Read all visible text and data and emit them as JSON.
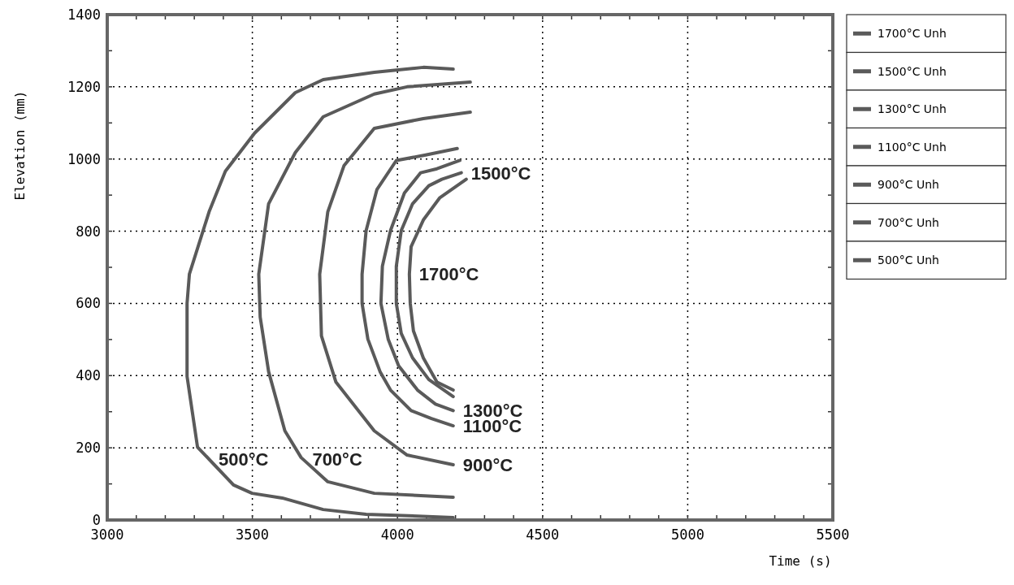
{
  "chart_data": {
    "type": "line",
    "xlabel": "Time (s)",
    "ylabel": "Elevation (mm)",
    "xlim": [
      3000,
      5500
    ],
    "ylim": [
      0,
      1400
    ],
    "xticks": [
      3000,
      {
        "value": 3100,
        "label": null
      },
      {
        "value": 3200,
        "label": null
      },
      {
        "value": 3300,
        "label": null
      },
      {
        "value": 3400,
        "label": null
      },
      3500,
      {
        "value": 3600,
        "label": null
      },
      {
        "value": 3700,
        "label": null
      },
      {
        "value": 3800,
        "label": null
      },
      {
        "value": 3900,
        "label": null
      },
      4000,
      {
        "value": 4100,
        "label": null
      },
      {
        "value": 4200,
        "label": null
      },
      {
        "value": 4300,
        "label": null
      },
      {
        "value": 4400,
        "label": null
      },
      4500,
      {
        "value": 4600,
        "label": null
      },
      {
        "value": 4700,
        "label": null
      },
      {
        "value": 4800,
        "label": null
      },
      {
        "value": 4900,
        "label": null
      },
      5000,
      {
        "value": 5100,
        "label": null
      },
      {
        "value": 5200,
        "label": null
      },
      {
        "value": 5300,
        "label": null
      },
      {
        "value": 5400,
        "label": null
      },
      5500
    ],
    "yticks": [
      0,
      {
        "value": 100,
        "label": null
      },
      200,
      {
        "value": 300,
        "label": null
      },
      400,
      {
        "value": 500,
        "label": null
      },
      600,
      {
        "value": 700,
        "label": null
      },
      800,
      {
        "value": 900,
        "label": null
      },
      1000,
      {
        "value": 1100,
        "label": null
      },
      1200,
      {
        "value": 1300,
        "label": null
      },
      1400
    ],
    "grid": true,
    "legend": "right",
    "line_style": "solid",
    "series": [
      {
        "name": "1700°C Unh",
        "color": "#5a5a5a",
        "x": [
          4237,
          4145,
          4089,
          4047,
          4041,
          4044,
          4055,
          4089,
          4136,
          4192
        ],
        "values": [
          944,
          892,
          831,
          757,
          681,
          600,
          524,
          449,
          382,
          360
        ]
      },
      {
        "name": "1500°C Unh",
        "color": "#5a5a5a",
        "x": [
          4220,
          4153,
          4108,
          4052,
          4013,
          3996,
          3996,
          4013,
          4052,
          4108,
          4192
        ],
        "values": [
          962,
          944,
          926,
          876,
          802,
          703,
          600,
          517,
          449,
          389,
          342
        ]
      },
      {
        "name": "1300°C Unh",
        "color": "#5a5a5a",
        "x": [
          4215,
          4136,
          4080,
          4024,
          3976,
          3948,
          3943,
          3968,
          4004,
          4069,
          4131,
          4192
        ],
        "values": [
          996,
          973,
          962,
          906,
          802,
          703,
          600,
          501,
          427,
          360,
          321,
          303
        ]
      },
      {
        "name": "1100°C Unh",
        "color": "#5a5a5a",
        "x": [
          4206,
          4097,
          3996,
          3929,
          3892,
          3878,
          3878,
          3898,
          3940,
          3976,
          4047,
          4117,
          4192
        ],
        "values": [
          1029,
          1011,
          996,
          915,
          802,
          681,
          600,
          501,
          411,
          360,
          303,
          281,
          261
        ]
      },
      {
        "name": "900°C Unh",
        "color": "#5a5a5a",
        "x": [
          4251,
          4089,
          3920,
          3816,
          3760,
          3732,
          3738,
          3788,
          3920,
          4033,
          4192
        ],
        "values": [
          1130,
          1112,
          1085,
          982,
          854,
          681,
          510,
          382,
          247,
          180,
          153
        ]
      },
      {
        "name": "700°C Unh",
        "color": "#5a5a5a",
        "x": [
          4251,
          4033,
          3920,
          3744,
          3648,
          3556,
          3522,
          3527,
          3556,
          3612,
          3668,
          3760,
          3920,
          4192
        ],
        "values": [
          1213,
          1200,
          1180,
          1117,
          1018,
          876,
          681,
          562,
          411,
          247,
          173,
          106,
          74,
          63
        ]
      },
      {
        "name": "500°C Unh",
        "color": "#5a5a5a",
        "x": [
          4192,
          4089,
          3920,
          3744,
          3648,
          3508,
          3407,
          3351,
          3283,
          3275,
          3275,
          3311,
          3435,
          3499,
          3603,
          3744,
          3892,
          4192
        ],
        "values": [
          1249,
          1254,
          1240,
          1220,
          1184,
          1072,
          966,
          854,
          681,
          600,
          398,
          202,
          97,
          74,
          61,
          29,
          16,
          7
        ]
      }
    ],
    "annotations": [
      {
        "text": "500°C",
        "x": 3350,
        "y": 169
      },
      {
        "text": "700°C",
        "x": 3673,
        "y": 169
      },
      {
        "text": "900°C",
        "x": 4192,
        "y": 153
      },
      {
        "text": "1100°C",
        "x": 4192,
        "y": 261
      },
      {
        "text": "1300°C",
        "x": 4192,
        "y": 303
      },
      {
        "text": "1500°C",
        "x": 4220,
        "y": 962
      },
      {
        "text": "1700°C",
        "x": 4041,
        "y": 681
      }
    ]
  }
}
